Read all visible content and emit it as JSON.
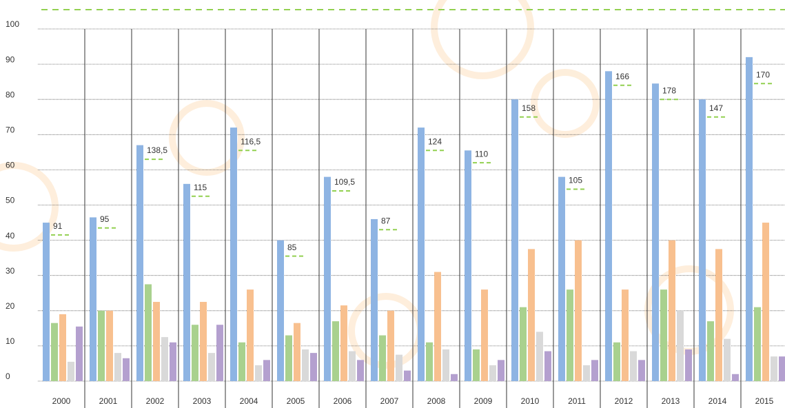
{
  "chart_data": {
    "type": "bar",
    "categories": [
      "2000",
      "2001",
      "2002",
      "2003",
      "2004",
      "2005",
      "2006",
      "2007",
      "2008",
      "2009",
      "2010",
      "2011",
      "2012",
      "2013",
      "2014",
      "2015"
    ],
    "series": [
      {
        "color": "#8eb4e3",
        "values": [
          45,
          46.5,
          67,
          56,
          72,
          40,
          58,
          46,
          72,
          65.5,
          80,
          58,
          88,
          84.5,
          80,
          92
        ]
      },
      {
        "color": "#a9d18e",
        "values": [
          16.5,
          20,
          27.5,
          16,
          11,
          13,
          17,
          13,
          11,
          9,
          21,
          26,
          11,
          26,
          17,
          21
        ]
      },
      {
        "color": "#f8c08f",
        "values": [
          19,
          20,
          22.5,
          22.5,
          26,
          16.5,
          21.5,
          20,
          31,
          26,
          37.5,
          40,
          26,
          40,
          37.5,
          45
        ]
      },
      {
        "color": "#d9d9d9",
        "values": [
          5.5,
          8,
          12.5,
          8,
          4.5,
          9,
          8.5,
          7.5,
          9,
          4.5,
          14,
          4.5,
          8.5,
          20,
          12,
          7
        ]
      },
      {
        "color": "#b4a0cf",
        "values": [
          15.5,
          6.5,
          11,
          16,
          6,
          8,
          6,
          3,
          2,
          6,
          8.5,
          6,
          6,
          9,
          2,
          7
        ]
      }
    ],
    "markers": {
      "color": "#92d050",
      "values": [
        41.5,
        43.5,
        63,
        52.5,
        65.5,
        35.5,
        54,
        43,
        65.5,
        62,
        75,
        54.5,
        84,
        80,
        75,
        84.5
      ]
    },
    "annotations": [
      "91",
      "95",
      "138,5",
      "115",
      "116,5",
      "85",
      "109,5",
      "87",
      "124",
      "110",
      "158",
      "105",
      "166",
      "178",
      "147",
      "170"
    ],
    "ylim": [
      0,
      100
    ],
    "yticks": [
      0,
      10,
      20,
      30,
      40,
      50,
      60,
      70,
      80,
      90,
      100
    ],
    "grid": true
  }
}
